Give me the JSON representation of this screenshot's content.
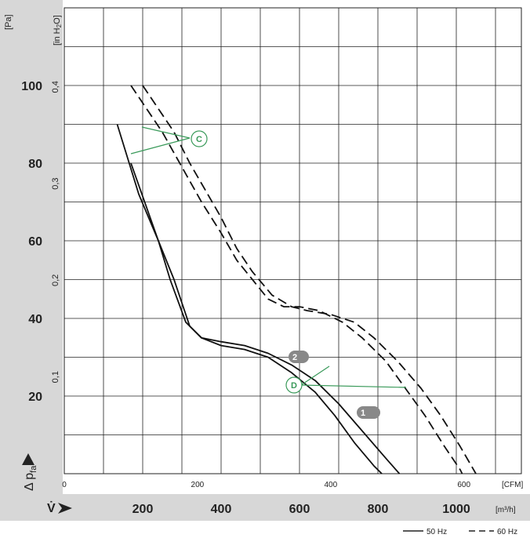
{
  "chart_data": {
    "type": "line",
    "left_axis": {
      "unit": "[Pa]",
      "ticks": [
        "20",
        "40",
        "60",
        "80",
        "100"
      ],
      "ylim": [
        0,
        120
      ],
      "inch_unit_prefix": "[in H",
      "inch_unit_sub": "2",
      "inch_unit_suffix": "O]",
      "inch_ticks": [
        "0,1",
        "0,2",
        "0,3",
        "0,4"
      ],
      "label_prefix": "Δ p",
      "label_sub": "fa"
    },
    "cfm_axis": {
      "unit": "[CFM]",
      "ticks": [
        "0",
        "200",
        "400",
        "600"
      ]
    },
    "x_axis": {
      "unit": "[m³/h]",
      "label": "V̇",
      "ticks": [
        "200",
        "400",
        "600",
        "800",
        "1000"
      ],
      "xlim": [
        0,
        1200
      ]
    },
    "legend": {
      "solid_label": "50 Hz",
      "dashed_label": "60 Hz"
    },
    "callouts": {
      "c": "C",
      "d": "D",
      "one": "1",
      "two": "2"
    },
    "series": [
      {
        "style": "solid",
        "points": [
          [
            135,
            90
          ],
          [
            190,
            72
          ],
          [
            240,
            60
          ],
          [
            270,
            50
          ],
          [
            310,
            39
          ],
          [
            350,
            35
          ],
          [
            400,
            34
          ],
          [
            460,
            33
          ],
          [
            520,
            31
          ],
          [
            580,
            28
          ],
          [
            640,
            24
          ],
          [
            700,
            18
          ],
          [
            760,
            11
          ],
          [
            820,
            4
          ],
          [
            855,
            0
          ]
        ]
      },
      {
        "style": "solid",
        "points": [
          [
            170,
            80
          ],
          [
            240,
            60
          ],
          [
            280,
            50
          ],
          [
            320,
            38
          ],
          [
            350,
            35
          ],
          [
            400,
            33
          ],
          [
            460,
            32
          ],
          [
            520,
            30
          ],
          [
            580,
            26
          ],
          [
            640,
            21
          ],
          [
            690,
            15
          ],
          [
            740,
            8
          ],
          [
            790,
            2
          ],
          [
            810,
            0
          ]
        ]
      },
      {
        "style": "dashed",
        "points": [
          [
            200,
            100
          ],
          [
            240,
            94
          ],
          [
            280,
            88
          ],
          [
            320,
            80
          ],
          [
            360,
            73
          ],
          [
            400,
            66
          ],
          [
            440,
            58
          ],
          [
            480,
            52
          ],
          [
            530,
            46
          ],
          [
            580,
            43
          ],
          [
            620,
            42
          ],
          [
            680,
            41
          ],
          [
            740,
            39
          ],
          [
            790,
            35
          ],
          [
            850,
            29
          ],
          [
            910,
            22
          ],
          [
            960,
            15
          ],
          [
            1010,
            7
          ],
          [
            1050,
            0
          ]
        ]
      },
      {
        "style": "dashed",
        "points": [
          [
            170,
            100
          ],
          [
            210,
            94
          ],
          [
            250,
            88
          ],
          [
            300,
            79
          ],
          [
            350,
            70
          ],
          [
            400,
            62
          ],
          [
            440,
            55
          ],
          [
            480,
            50
          ],
          [
            520,
            45
          ],
          [
            560,
            43
          ],
          [
            600,
            43
          ],
          [
            650,
            42
          ],
          [
            710,
            39
          ],
          [
            760,
            35
          ],
          [
            820,
            29
          ],
          [
            870,
            22
          ],
          [
            920,
            15
          ],
          [
            970,
            7
          ],
          [
            1010,
            1
          ],
          [
            1015,
            0
          ]
        ]
      }
    ]
  }
}
